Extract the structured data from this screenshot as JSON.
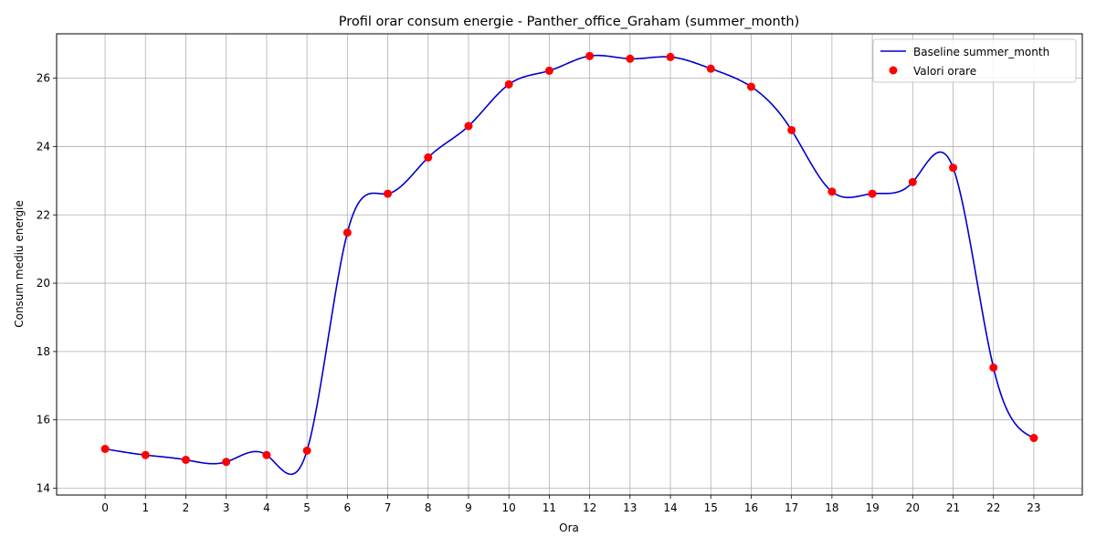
{
  "chart_data": {
    "type": "line",
    "title": "Profil orar consum energie - Panther_office_Graham (summer_month)",
    "xlabel": "Ora",
    "ylabel": "Consum mediu energie",
    "x": [
      0,
      1,
      2,
      3,
      4,
      5,
      6,
      7,
      8,
      9,
      10,
      11,
      12,
      13,
      14,
      15,
      16,
      17,
      18,
      19,
      20,
      21,
      22,
      23
    ],
    "x_tick_labels": [
      "0",
      "1",
      "2",
      "3",
      "4",
      "5",
      "6",
      "7",
      "8",
      "9",
      "10",
      "11",
      "12",
      "13",
      "14",
      "15",
      "16",
      "17",
      "18",
      "19",
      "20",
      "21",
      "22",
      "23"
    ],
    "y_ticks": [
      14,
      16,
      18,
      20,
      22,
      24,
      26
    ],
    "y_tick_labels": [
      "14",
      "16",
      "18",
      "20",
      "22",
      "24",
      "26"
    ],
    "xlim": [
      -1.2,
      24.2
    ],
    "ylim": [
      13.8,
      27.3
    ],
    "grid": true,
    "legend_position": "top-right",
    "series": [
      {
        "name": "Baseline summer_month",
        "kind": "smooth-line",
        "color": "#0000cc",
        "values": [
          15.15,
          14.97,
          14.83,
          14.77,
          14.97,
          15.1,
          21.48,
          22.62,
          23.68,
          24.6,
          25.82,
          26.22,
          26.65,
          26.57,
          26.62,
          26.28,
          25.75,
          24.48,
          22.68,
          22.62,
          22.96,
          23.38,
          17.53,
          15.47
        ]
      },
      {
        "name": "Valori orare",
        "kind": "scatter",
        "color": "#ff0000",
        "values": [
          15.15,
          14.97,
          14.83,
          14.77,
          14.97,
          15.1,
          21.48,
          22.62,
          23.68,
          24.6,
          25.82,
          26.22,
          26.65,
          26.57,
          26.62,
          26.28,
          25.75,
          24.48,
          22.68,
          22.62,
          22.96,
          23.38,
          17.53,
          15.47
        ]
      }
    ]
  }
}
